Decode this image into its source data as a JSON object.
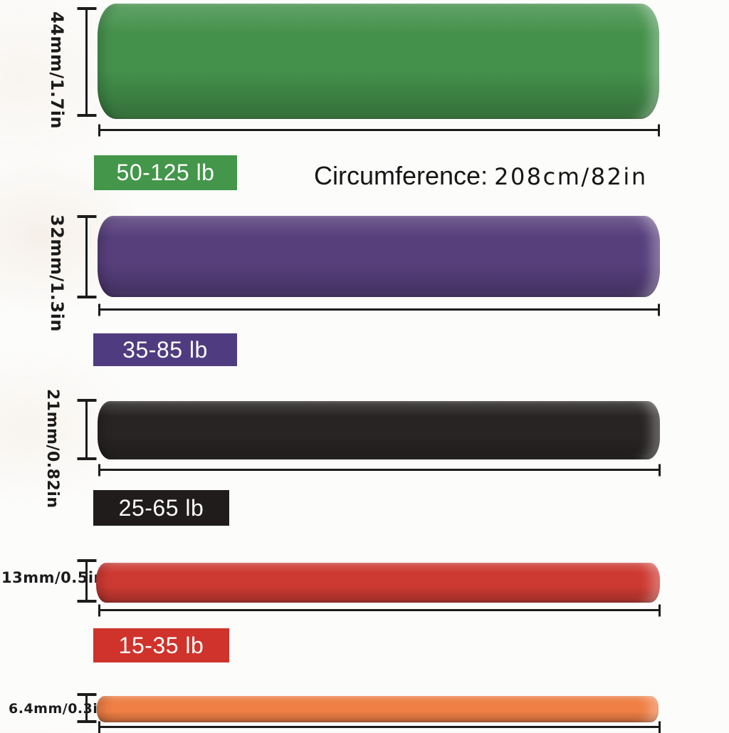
{
  "page": {
    "background": "#fcfcfb",
    "dimension_line_color": "#1c1c1c",
    "text_color": "#1b1b1b"
  },
  "circumference": {
    "label": "Circumference:",
    "value": "208cm/82in"
  },
  "bands": [
    {
      "name": "green",
      "width_label": "44mm/1.7in",
      "resistance_label": "50-125 lb",
      "color": "#44914b",
      "badge_color": "#43964a"
    },
    {
      "name": "purple",
      "width_label": "32mm/1.3in",
      "resistance_label": "35-85 lb",
      "color": "#573f7c",
      "badge_color": "#4f3c80"
    },
    {
      "name": "black",
      "width_label": "21mm/0.82in",
      "resistance_label": "25-65 lb",
      "color": "#282424",
      "badge_color": "#201c1c"
    },
    {
      "name": "red",
      "width_label": "13mm/0.5in",
      "resistance_label": "15-35 lb",
      "color": "#cd3a32",
      "badge_color": "#cf332b"
    },
    {
      "name": "orange",
      "width_label": "6.4mm/0.3in",
      "color": "#ef7f44"
    }
  ]
}
